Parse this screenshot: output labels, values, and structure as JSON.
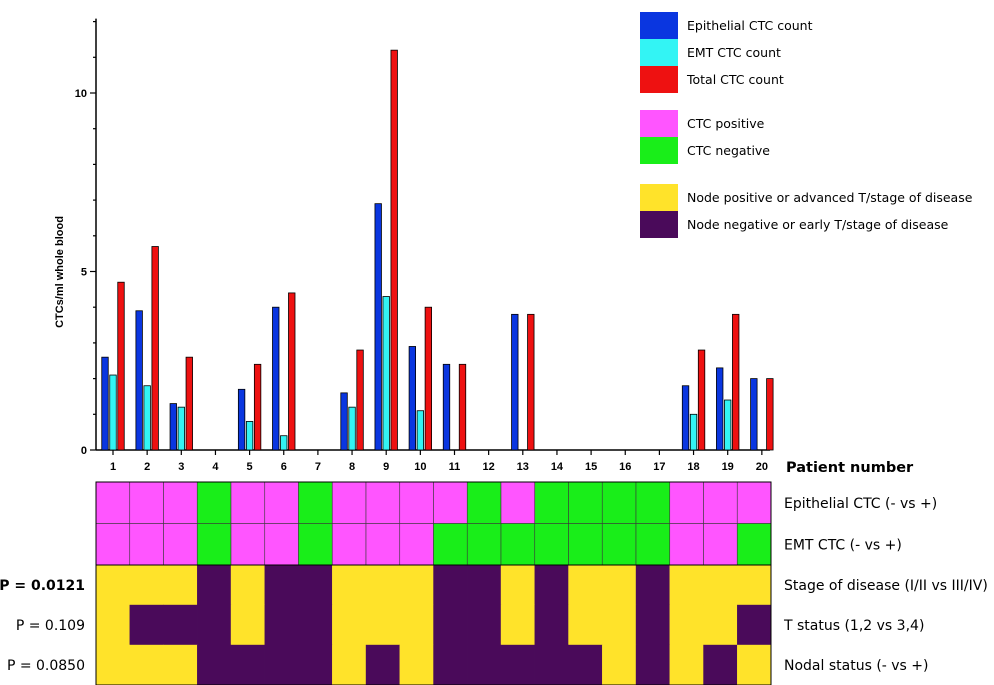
{
  "chart_data": {
    "type": "bar",
    "ylabel": "CTCs/ml whole blood",
    "xlabel": "Patient number",
    "ylim": [
      0,
      12
    ],
    "yticks": [
      "0",
      "5",
      "10"
    ],
    "categories": [
      "1",
      "2",
      "3",
      "4",
      "5",
      "6",
      "7",
      "8",
      "9",
      "10",
      "11",
      "12",
      "13",
      "14",
      "15",
      "16",
      "17",
      "18",
      "19",
      "20"
    ],
    "series": [
      {
        "name": "Epithelial CTC count",
        "color": "#0a36e0",
        "values": [
          2.6,
          3.9,
          1.3,
          0,
          1.7,
          4.0,
          0,
          1.6,
          6.9,
          2.9,
          2.4,
          0,
          3.8,
          0,
          0,
          0,
          0,
          1.8,
          2.3,
          2.0
        ]
      },
      {
        "name": "EMT CTC count",
        "color": "#33f4f4",
        "values": [
          2.1,
          1.8,
          1.2,
          0,
          0.8,
          0.4,
          0,
          1.2,
          4.3,
          1.1,
          0,
          0,
          0,
          0,
          0,
          0,
          0,
          1.0,
          1.4,
          0
        ]
      },
      {
        "name": "Total CTC count",
        "color": "#ee1111",
        "values": [
          4.7,
          5.7,
          2.6,
          0,
          2.4,
          4.4,
          0,
          2.8,
          11.2,
          4.0,
          2.4,
          0,
          3.8,
          0,
          0,
          0,
          0,
          2.8,
          3.8,
          2.0
        ]
      }
    ],
    "legend": {
      "position": "top-right",
      "groups": [
        [
          {
            "label": "Epithelial CTC count",
            "color": "#0a36e0"
          },
          {
            "label": "EMT CTC count",
            "color": "#33f4f4"
          },
          {
            "label": "Total CTC count",
            "color": "#ee1111"
          }
        ],
        [
          {
            "label": "CTC positive",
            "color": "#ff55ff"
          },
          {
            "label": "CTC negative",
            "color": "#19ee19"
          }
        ],
        [
          {
            "label": "Node positive or advanced T/stage of disease",
            "color": "#ffe32a"
          },
          {
            "label": "Node negative or early T/stage of disease",
            "color": "#4a0a5a"
          }
        ]
      ]
    },
    "heatmap": {
      "ctc_colors": {
        "1": "#ff55ff",
        "0": "#19ee19"
      },
      "clinical_colors": {
        "1": "#ffe32a",
        "0": "#4a0a5a"
      },
      "ctc_rows": [
        {
          "label": "Epithelial CTC (- vs +)",
          "values": [
            1,
            1,
            1,
            0,
            1,
            1,
            0,
            1,
            1,
            1,
            1,
            0,
            1,
            0,
            0,
            0,
            0,
            1,
            1,
            1
          ]
        },
        {
          "label": "EMT CTC (- vs +)",
          "values": [
            1,
            1,
            1,
            0,
            1,
            1,
            0,
            1,
            1,
            1,
            0,
            0,
            0,
            0,
            0,
            0,
            0,
            1,
            1,
            0
          ]
        }
      ],
      "clinical_rows": [
        {
          "label": "Stage of disease (I/II vs III/IV)",
          "p": "P = 0.0121",
          "p_bold": true,
          "values": [
            1,
            1,
            1,
            0,
            1,
            0,
            0,
            1,
            1,
            1,
            0,
            0,
            1,
            0,
            1,
            1,
            0,
            1,
            1,
            1
          ]
        },
        {
          "label": "T status (1,2 vs 3,4)",
          "p": "P = 0.109",
          "p_bold": false,
          "values": [
            1,
            0,
            0,
            0,
            1,
            0,
            0,
            1,
            1,
            1,
            0,
            0,
            1,
            0,
            1,
            1,
            0,
            1,
            1,
            0
          ]
        },
        {
          "label": "Nodal status (- vs +)",
          "p": "P = 0.0850",
          "p_bold": false,
          "values": [
            1,
            1,
            1,
            0,
            0,
            0,
            0,
            1,
            0,
            1,
            0,
            0,
            0,
            0,
            0,
            1,
            0,
            1,
            0,
            1
          ]
        }
      ]
    }
  }
}
